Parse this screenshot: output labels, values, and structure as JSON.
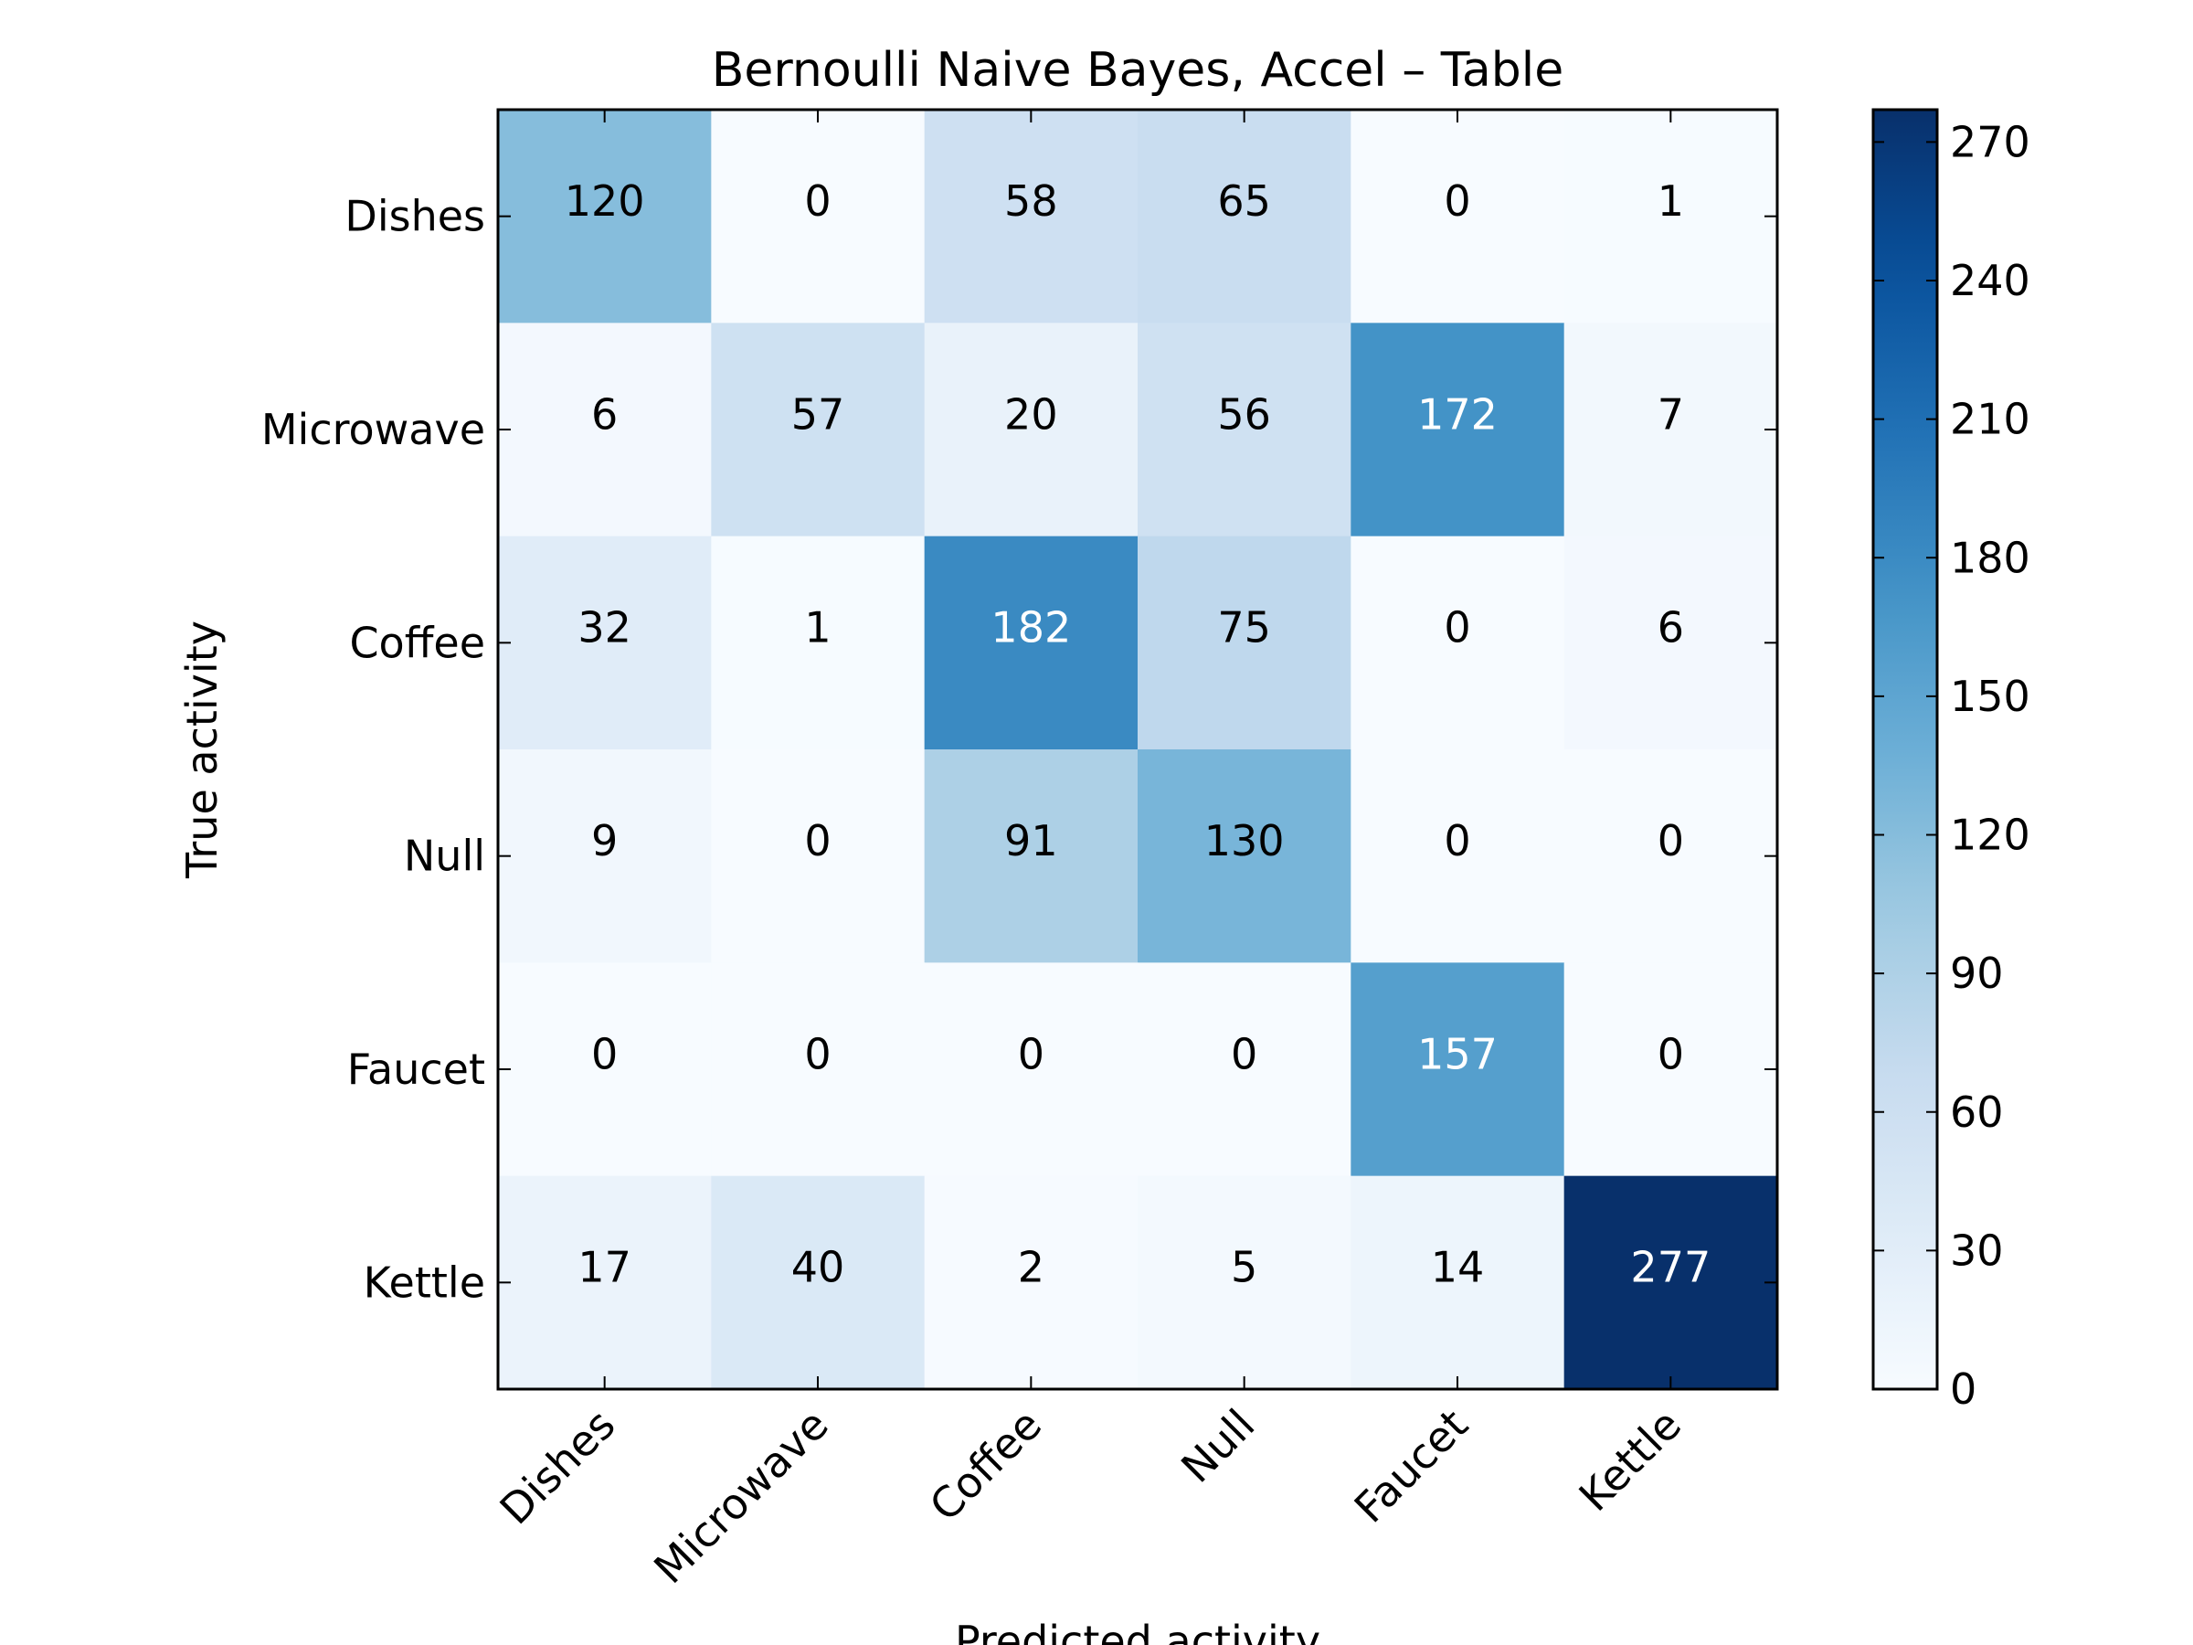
{
  "chart_data": {
    "type": "heatmap",
    "title": "Bernoulli Naive Bayes, Accel – Table",
    "xlabel": "Predicted activity",
    "ylabel": "True activity",
    "x_categories": [
      "Dishes",
      "Microwave",
      "Coffee",
      "Null",
      "Faucet",
      "Kettle"
    ],
    "y_categories": [
      "Dishes",
      "Microwave",
      "Coffee",
      "Null",
      "Faucet",
      "Kettle"
    ],
    "values": [
      [
        120,
        0,
        58,
        65,
        0,
        1
      ],
      [
        6,
        57,
        20,
        56,
        172,
        7
      ],
      [
        32,
        1,
        182,
        75,
        0,
        6
      ],
      [
        9,
        0,
        91,
        130,
        0,
        0
      ],
      [
        0,
        0,
        0,
        0,
        157,
        0
      ],
      [
        17,
        40,
        2,
        5,
        14,
        277
      ]
    ],
    "colorbar": {
      "colormap": "Blues",
      "range": [
        0,
        277
      ],
      "ticks": [
        0,
        30,
        60,
        90,
        120,
        150,
        180,
        210,
        240,
        270
      ]
    },
    "grid": false
  }
}
